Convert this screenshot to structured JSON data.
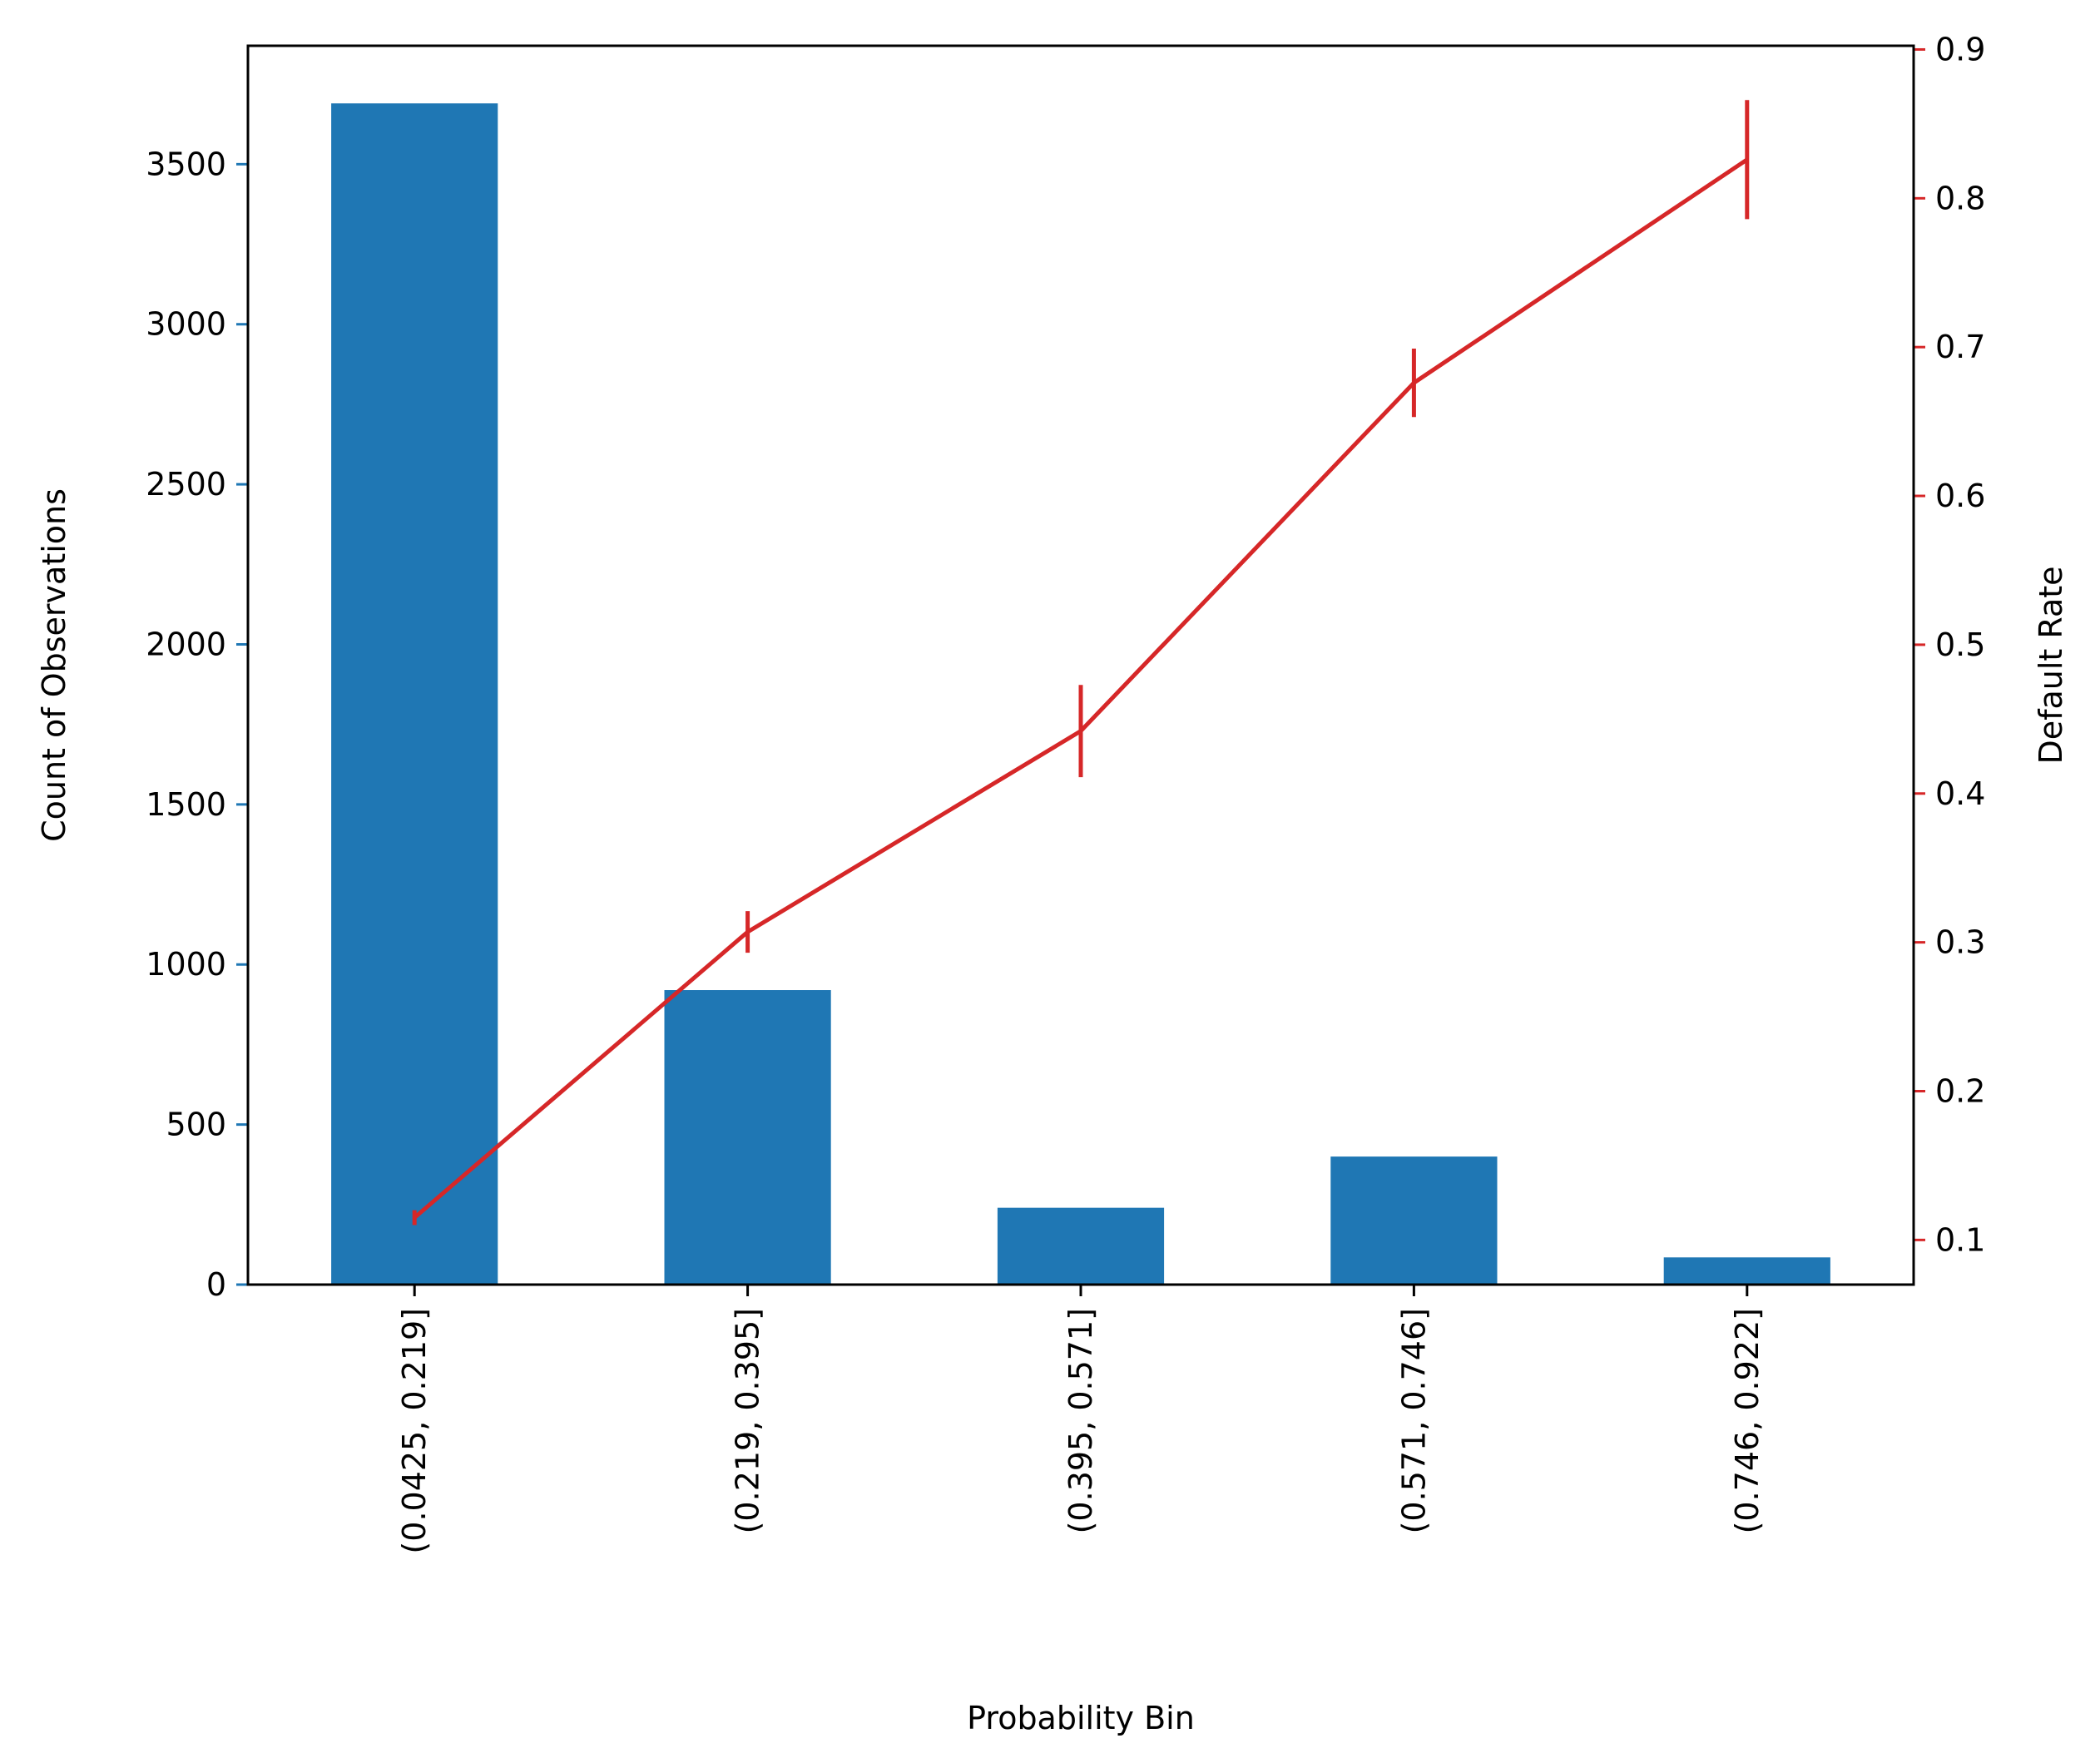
{
  "chart_data": {
    "type": "bar",
    "xlabel": "Probability Bin",
    "categories": [
      "(0.0425, 0.219]",
      "(0.219, 0.395]",
      "(0.395, 0.571]",
      "(0.571, 0.746]",
      "(0.746, 0.922]"
    ],
    "series": [
      {
        "type": "bar",
        "axis": "left",
        "color": "#1f77b4",
        "values": [
          3690,
          920,
          240,
          400,
          85
        ]
      },
      {
        "type": "line",
        "axis": "right",
        "color": "#d62728",
        "values": [
          0.115,
          0.307,
          0.442,
          0.676,
          0.826
        ],
        "error": [
          0.005,
          0.014,
          0.031,
          0.023,
          0.04
        ]
      }
    ],
    "y_left": {
      "label": "Count of Observations",
      "ylim": [
        0,
        3870
      ],
      "ticks": [
        0,
        500,
        1000,
        1500,
        2000,
        2500,
        3000,
        3500
      ]
    },
    "y_right": {
      "label": "Default Rate",
      "ylim": [
        0.07,
        0.9025
      ],
      "ticks": [
        0.1,
        0.2,
        0.3,
        0.4,
        0.5,
        0.6,
        0.7,
        0.8,
        0.9
      ],
      "tick_labels": [
        "0.1",
        "0.2",
        "0.3",
        "0.4",
        "0.5",
        "0.6",
        "0.7",
        "0.8",
        "0.9"
      ],
      "tick_color": "#d62728"
    },
    "grid": false,
    "legend": false
  }
}
